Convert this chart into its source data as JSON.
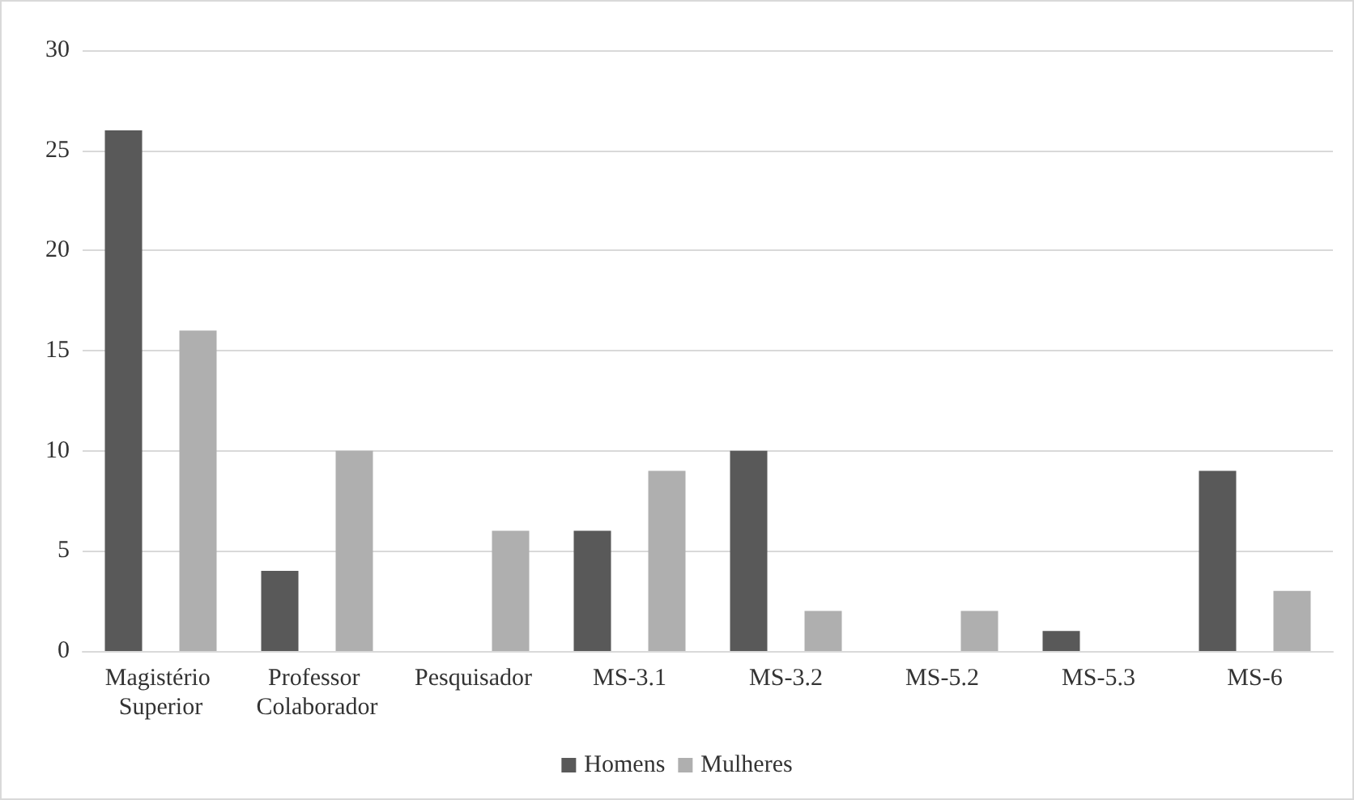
{
  "chart_data": {
    "type": "bar",
    "categories": [
      "Magistério Superior",
      "Professor Colaborador",
      "Pesquisador",
      "MS-3.1",
      "MS-3.2",
      "MS-5.2",
      "MS-5.3",
      "MS-6"
    ],
    "series": [
      {
        "name": "Homens",
        "color": "#595959",
        "values": [
          26,
          4,
          0,
          6,
          10,
          0,
          1,
          9
        ]
      },
      {
        "name": "Mulheres",
        "color": "#afafaf",
        "values": [
          16,
          10,
          6,
          9,
          2,
          2,
          0,
          3
        ]
      }
    ],
    "ylim": [
      0,
      30
    ],
    "yticks": [
      0,
      5,
      10,
      15,
      20,
      25,
      30
    ],
    "grid": "y",
    "legend": "bottom"
  }
}
